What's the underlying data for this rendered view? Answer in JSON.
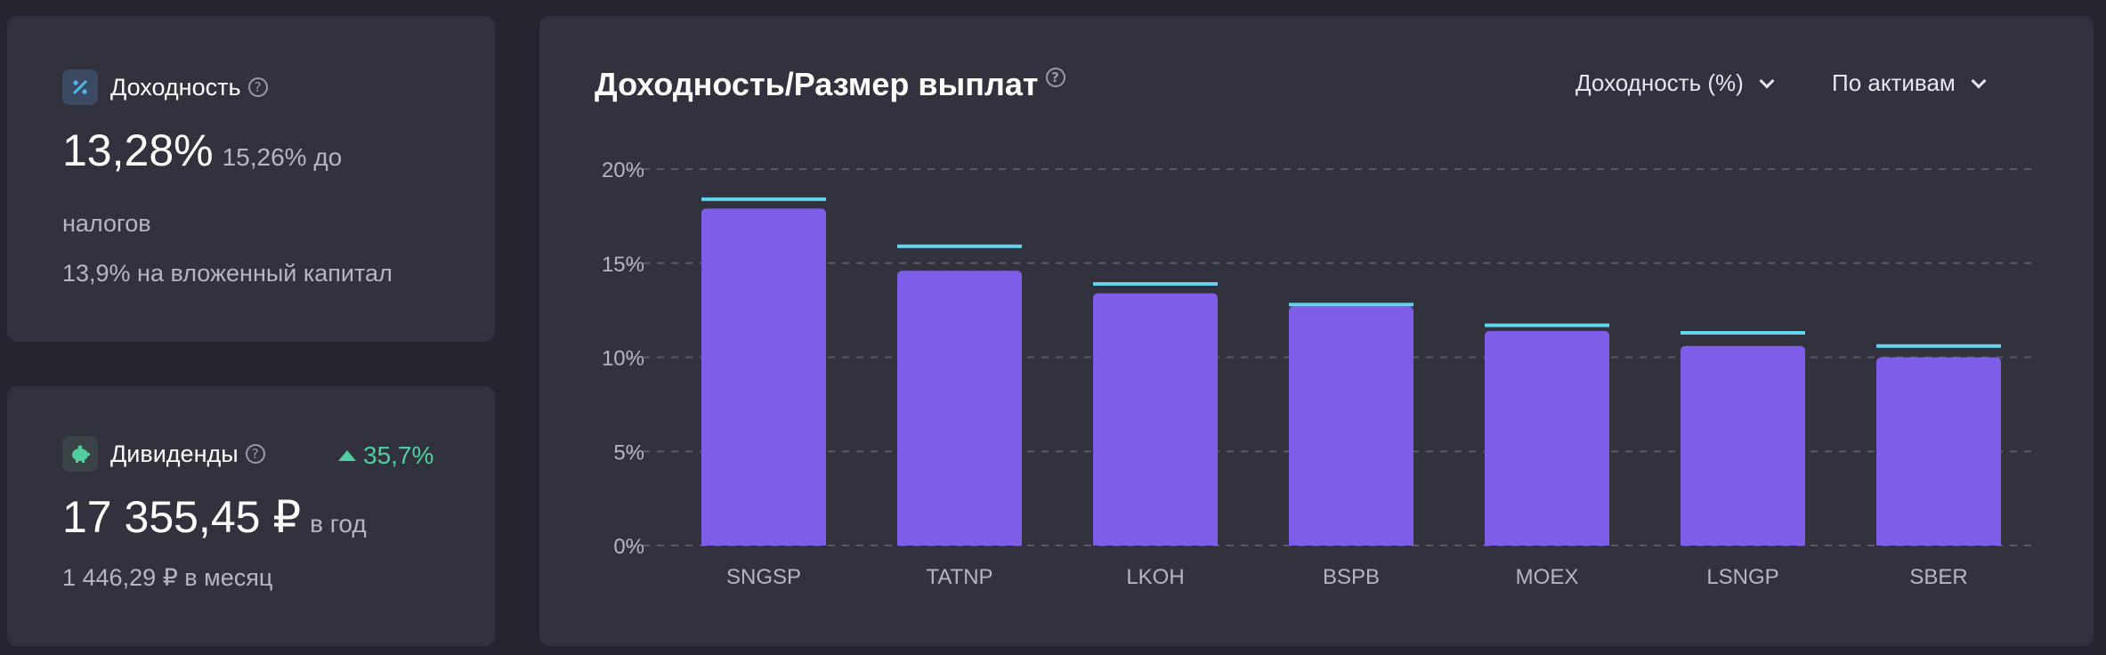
{
  "yield_card": {
    "label": "Доходность",
    "help": "?",
    "value": "13,28%",
    "value_sub": "15,26% до",
    "line1": "налогов",
    "line2": "13,9% на вложенный капитал",
    "icon": "percent-icon"
  },
  "dividends_card": {
    "label": "Дивиденды",
    "help": "?",
    "change": "35,7%",
    "value": "17 355,45 ₽",
    "value_sub": "в год",
    "line1": "1 446,29 ₽ в месяц",
    "icon": "piggy-bank-icon"
  },
  "chart_card": {
    "title": "Доходность/Размер выплат",
    "help": "?",
    "metric_dropdown": "Доходность (%)",
    "group_dropdown": "По активам"
  },
  "colors": {
    "bar": "#7e5ee9",
    "marker": "#62d4ee",
    "positive": "#4fcf9d",
    "card": "#32323e",
    "background": "#25252f"
  },
  "chart_data": {
    "type": "bar",
    "categories": [
      "SNGSP",
      "TATNP",
      "LKOH",
      "BSPB",
      "MOEX",
      "LSNGP",
      "SBER"
    ],
    "series": [
      {
        "values": [
          17.9,
          14.6,
          13.4,
          12.7,
          11.4,
          10.6,
          10.0
        ]
      },
      {
        "values": [
          18.4,
          15.9,
          13.9,
          12.8,
          11.7,
          11.3,
          10.6
        ]
      }
    ],
    "ylim": [
      0,
      20
    ],
    "yticks": [
      0,
      5,
      10,
      15,
      20
    ],
    "ytick_labels": [
      "0%",
      "5%",
      "10%",
      "15%",
      "20%"
    ],
    "grid": true
  }
}
